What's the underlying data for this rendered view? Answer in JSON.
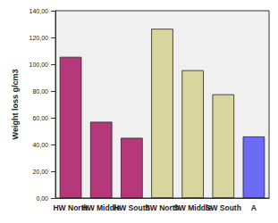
{
  "chart_data": {
    "type": "bar",
    "y_label": "Weight loss g/cm3",
    "categories": [
      "HW North",
      "HW Middle",
      "HW South",
      "SW North",
      "SW Middle",
      "SW South",
      "A"
    ],
    "values": [
      105.5,
      57,
      45,
      126.5,
      95.5,
      77.5,
      46
    ],
    "colors": [
      "#b5397a",
      "#b5397a",
      "#b5397a",
      "#d8d59e",
      "#d8d59e",
      "#d8d59e",
      "#6b6bf5"
    ],
    "ylim": [
      0,
      140
    ],
    "yticks": [
      {
        "value": 0,
        "label": "0,00"
      },
      {
        "value": 20,
        "label": "20,00"
      },
      {
        "value": 40,
        "label": "40,00"
      },
      {
        "value": 60,
        "label": "60,00"
      },
      {
        "value": 80,
        "label": "80,00"
      },
      {
        "value": 100,
        "label": "100,00"
      },
      {
        "value": 120,
        "label": "120,00"
      },
      {
        "value": 140,
        "label": "140,00"
      }
    ],
    "grid": false
  }
}
